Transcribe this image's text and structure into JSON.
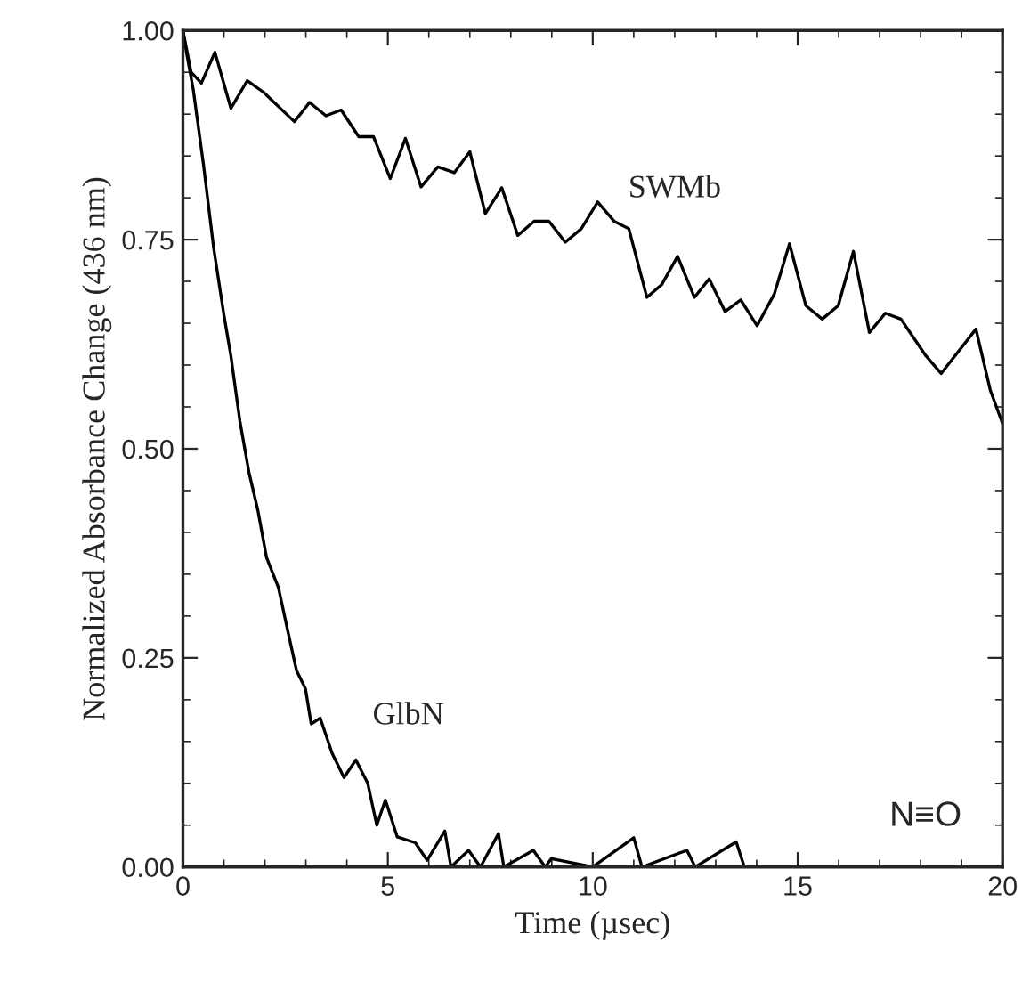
{
  "chart_data": {
    "type": "line",
    "xlabel": "Time (µsec)",
    "ylabel": "Normalized Absorbance Change (436 nm)",
    "xlim": [
      0,
      20
    ],
    "ylim": [
      0,
      1
    ],
    "xticks": [
      0,
      5,
      10,
      15,
      20
    ],
    "yticks": [
      {
        "value": 0,
        "label": "0.00"
      },
      {
        "value": 0.25,
        "label": "0.25"
      },
      {
        "value": 0.5,
        "label": "0.50"
      },
      {
        "value": 0.75,
        "label": "0.75"
      },
      {
        "value": 1,
        "label": "1.00"
      }
    ],
    "grid": false,
    "legend": false,
    "marker": "none",
    "line_style": "solid",
    "series": [
      {
        "color": "#000000",
        "x": [
          0,
          0.2,
          0.45,
          0.78,
          1.17,
          1.57,
          1.97,
          2.72,
          3.09,
          3.49,
          3.86,
          4.29,
          4.65,
          5.06,
          5.43,
          5.81,
          6.22,
          6.62,
          7.0,
          7.38,
          7.78,
          8.17,
          8.57,
          8.93,
          9.33,
          9.72,
          10.12,
          10.52,
          10.88,
          11.32,
          11.68,
          12.07,
          12.48,
          12.84,
          13.23,
          13.61,
          14.01,
          14.43,
          14.8,
          15.2,
          15.6,
          15.99,
          16.36,
          16.75,
          17.14,
          17.52,
          18.13,
          18.5,
          19.35,
          19.7,
          20
        ],
        "values": [
          1.0,
          0.95,
          0.937,
          0.974,
          0.907,
          0.94,
          0.926,
          0.891,
          0.914,
          0.898,
          0.905,
          0.873,
          0.873,
          0.823,
          0.871,
          0.813,
          0.837,
          0.83,
          0.855,
          0.781,
          0.812,
          0.755,
          0.772,
          0.772,
          0.747,
          0.763,
          0.795,
          0.772,
          0.763,
          0.681,
          0.696,
          0.73,
          0.681,
          0.703,
          0.664,
          0.678,
          0.647,
          0.685,
          0.745,
          0.671,
          0.655,
          0.671,
          0.736,
          0.639,
          0.662,
          0.655,
          0.611,
          0.59,
          0.643,
          0.57,
          0.53
        ]
      },
      {
        "color": "#000000",
        "x": [
          0,
          0.1,
          0.25,
          0.5,
          0.75,
          1.0,
          1.17,
          1.39,
          1.61,
          1.83,
          2.04,
          2.33,
          2.55,
          2.77,
          2.99,
          3.13,
          3.35,
          3.64,
          3.93,
          4.22,
          4.51,
          4.73,
          4.94,
          5.23,
          5.67,
          5.96,
          6.39,
          6.54,
          6.97,
          7.26,
          7.7,
          7.83,
          8.55,
          8.84,
          8.99,
          10.0,
          11.0,
          11.2,
          12.3,
          12.5,
          13.5,
          13.7,
          20
        ],
        "values": [
          1.0,
          0.97,
          0.93,
          0.84,
          0.74,
          0.66,
          0.611,
          0.533,
          0.472,
          0.426,
          0.37,
          0.334,
          0.284,
          0.235,
          0.213,
          0.171,
          0.178,
          0.136,
          0.107,
          0.128,
          0.1,
          0.05,
          0.08,
          0.036,
          0.029,
          0.008,
          0.043,
          0.0,
          0.02,
          0.0,
          0.04,
          0.0,
          0.02,
          0.0,
          0.01,
          0.0,
          0.035,
          0.0,
          0.02,
          0.0,
          0.03,
          0.0,
          0.0
        ]
      }
    ],
    "annotations": [
      "SWMb",
      "GlbN",
      "N≡O"
    ]
  }
}
